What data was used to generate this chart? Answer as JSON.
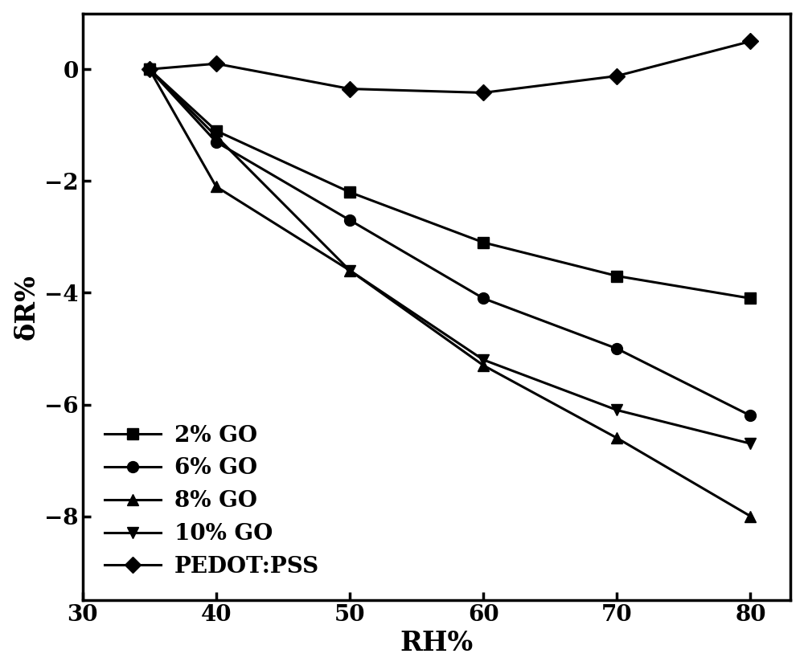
{
  "x": [
    35,
    40,
    50,
    60,
    70,
    80
  ],
  "series": {
    "2% GO": {
      "y": [
        0,
        -1.1,
        -2.2,
        -3.1,
        -3.7,
        -4.1
      ],
      "marker": "s",
      "label": "2% GO"
    },
    "6% GO": {
      "y": [
        0,
        -1.3,
        -2.7,
        -4.1,
        -5.0,
        -6.2
      ],
      "marker": "o",
      "label": "6% GO"
    },
    "8% GO": {
      "y": [
        0,
        -2.1,
        -3.6,
        -5.3,
        -6.6,
        -8.0
      ],
      "marker": "^",
      "label": "8% GO"
    },
    "10% GO": {
      "y": [
        0,
        -1.2,
        -3.6,
        -5.2,
        -6.1,
        -6.7
      ],
      "marker": "v",
      "label": "10% GO"
    },
    "PEDOT:PSS": {
      "y": [
        0,
        0.1,
        -0.35,
        -0.42,
        -0.12,
        0.5
      ],
      "marker": "D",
      "label": "PEDOT:PSS"
    }
  },
  "xlabel": "RH%",
  "ylabel": "δR%",
  "xlim": [
    30,
    83
  ],
  "ylim": [
    -9.5,
    1.0
  ],
  "xticks": [
    30,
    40,
    50,
    60,
    70,
    80
  ],
  "yticks": [
    0,
    -2,
    -4,
    -6,
    -8
  ],
  "line_color": "#000000",
  "linewidth": 2.2,
  "markersize": 10,
  "background_color": "#ffffff",
  "legend_loc": "lower left",
  "font_size": 20,
  "label_font_size": 24,
  "tick_font_size": 20
}
